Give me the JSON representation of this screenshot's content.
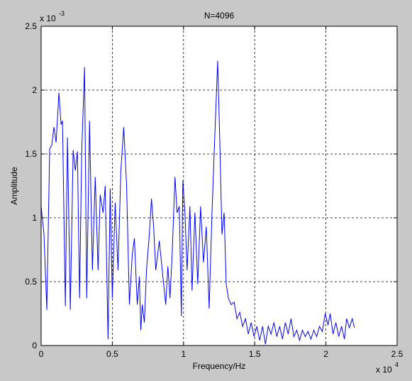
{
  "chart_data": {
    "type": "line",
    "title": "N=4096",
    "x_label": "Frequency/Hz",
    "y_label": "Amplitude",
    "x_multiplier": {
      "base": "x 10",
      "exponent": "4"
    },
    "y_multiplier": {
      "base": "x 10",
      "exponent": "-3"
    },
    "xlim": [
      0,
      2.5
    ],
    "ylim": [
      0,
      2.5
    ],
    "xticks": [
      0,
      0.5,
      1,
      1.5,
      2,
      2.5
    ],
    "yticks": [
      0,
      0.5,
      1,
      1.5,
      2,
      2.5
    ],
    "grid": true,
    "x": [
      0,
      0.02,
      0.04,
      0.06,
      0.075,
      0.09,
      0.105,
      0.125,
      0.14,
      0.15,
      0.17,
      0.185,
      0.205,
      0.225,
      0.24,
      0.255,
      0.27,
      0.285,
      0.305,
      0.32,
      0.34,
      0.36,
      0.38,
      0.4,
      0.415,
      0.435,
      0.45,
      0.47,
      0.485,
      0.5,
      0.52,
      0.54,
      0.56,
      0.58,
      0.6,
      0.62,
      0.64,
      0.655,
      0.675,
      0.69,
      0.7,
      0.71,
      0.725,
      0.74,
      0.76,
      0.775,
      0.79,
      0.805,
      0.83,
      0.855,
      0.875,
      0.89,
      0.905,
      0.92,
      0.94,
      0.955,
      0.97,
      0.985,
      0.995,
      1.01,
      1.025,
      1.045,
      1.06,
      1.08,
      1.1,
      1.12,
      1.14,
      1.16,
      1.18,
      1.2,
      1.22,
      1.24,
      1.255,
      1.27,
      1.285,
      1.3,
      1.315,
      1.335,
      1.355,
      1.375,
      1.395,
      1.415,
      1.435,
      1.455,
      1.475,
      1.495,
      1.515,
      1.535,
      1.555,
      1.575,
      1.595,
      1.615,
      1.635,
      1.655,
      1.675,
      1.695,
      1.715,
      1.735,
      1.755,
      1.775,
      1.795,
      1.815,
      1.835,
      1.855,
      1.875,
      1.895,
      1.915,
      1.935,
      1.955,
      1.975,
      1.995,
      2.015,
      2.03,
      2.05,
      2.07,
      2.09,
      2.11,
      2.13,
      2.145,
      2.165,
      2.185,
      2.2
    ],
    "series": [
      {
        "color": "#0000ff",
        "values": [
          1.09,
          0.87,
          0.28,
          1.54,
          1.57,
          1.71,
          1.59,
          1.98,
          1.73,
          1.76,
          0.31,
          1.63,
          0.28,
          1.53,
          1.37,
          1.52,
          0.37,
          1.51,
          2.18,
          0.37,
          1.76,
          0.59,
          1.32,
          0.59,
          1.18,
          1.04,
          1.25,
          0.05,
          1.23,
          0.37,
          1.12,
          0.59,
          1.37,
          1.71,
          1.26,
          0.32,
          0.71,
          0.84,
          0.32,
          0.54,
          0.12,
          0.32,
          0.18,
          0.59,
          0.87,
          1.15,
          0.93,
          0.59,
          0.82,
          0.54,
          0.32,
          0.62,
          0.37,
          0.71,
          1.32,
          1.04,
          1.09,
          0.23,
          1.29,
          1.04,
          0.59,
          1.09,
          0.43,
          1.04,
          0.48,
          1.09,
          0.65,
          0.93,
          0.29,
          1.04,
          1.65,
          2.23,
          1.59,
          0.87,
          1.04,
          0.48,
          0.37,
          0.32,
          0.34,
          0.21,
          0.26,
          0.15,
          0.21,
          0.09,
          0.18,
          0.07,
          0.15,
          0.04,
          0.15,
          0.01,
          0.15,
          0.09,
          0.18,
          0.07,
          0.15,
          0.05,
          0.18,
          0.09,
          0.21,
          0.07,
          0.12,
          0.04,
          0.12,
          0.07,
          0.11,
          0.05,
          0.12,
          0.07,
          0.15,
          0.11,
          0.25,
          0.16,
          0.25,
          0.09,
          0.18,
          0.07,
          0.15,
          0.05,
          0.21,
          0.14,
          0.21,
          0.14
        ]
      }
    ]
  }
}
